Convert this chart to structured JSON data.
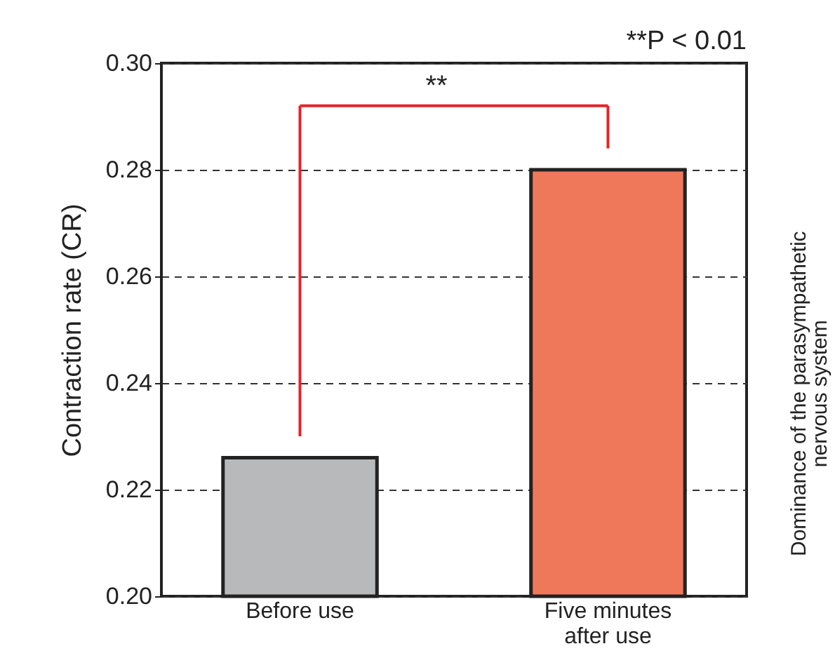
{
  "chart_data": {
    "type": "bar",
    "categories": [
      "Before use",
      "Five minutes\nafter use"
    ],
    "values": [
      0.226,
      0.28
    ],
    "colors": [
      "#b8b9bb",
      "#f0785a"
    ],
    "ylabel": "Contraction rate (CR)",
    "ylim": [
      0.2,
      0.3
    ],
    "yticks": [
      {
        "value": 0.2,
        "label": "0.20"
      },
      0.22,
      0.24,
      0.26,
      0.28,
      {
        "value": 0.3,
        "label": "0.30"
      }
    ],
    "grid": "y",
    "annotations": [
      "**P < 0.01",
      "**",
      "Dominance of the parasympathetic\nnervous system"
    ]
  }
}
